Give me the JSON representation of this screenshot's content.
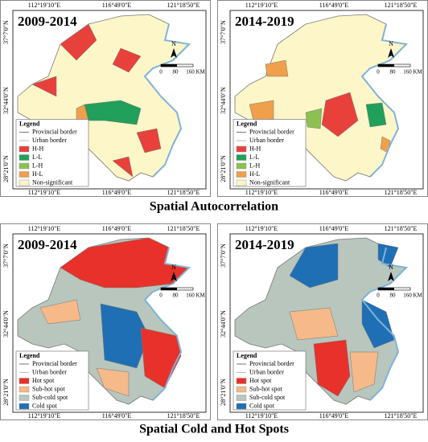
{
  "sections": [
    {
      "title": "Spatial Autocorrelation",
      "panels": [
        {
          "period": "2009-2014"
        },
        {
          "period": "2014-2019"
        }
      ],
      "legend": {
        "title": "Legend",
        "items": [
          {
            "label": "Provincial border",
            "color": "#555555"
          },
          {
            "label": "Urban border",
            "color": "#aaaaaa"
          },
          {
            "label": "H-H",
            "color": "#e8413c"
          },
          {
            "label": "L-L",
            "color": "#20a05a"
          },
          {
            "label": "L-H",
            "color": "#8cc152"
          },
          {
            "label": "H-L",
            "color": "#f0a04b"
          },
          {
            "label": "Non-significant",
            "color": "#fcf6c8"
          }
        ]
      }
    },
    {
      "title": "Spatial Cold and Hot Spots",
      "panels": [
        {
          "period": "2009-2014"
        },
        {
          "period": "2014-2019"
        }
      ],
      "legend": {
        "title": "Legend",
        "items": [
          {
            "label": "Provincial border",
            "color": "#555555"
          },
          {
            "label": "Urban border",
            "color": "#aaaaaa"
          },
          {
            "label": "Hot spot",
            "color": "#e8312a"
          },
          {
            "label": "Sub-hot spot",
            "color": "#f5b98a"
          },
          {
            "label": "Sub-cold spot",
            "color": "#b8c6bd"
          },
          {
            "label": "Cold spot",
            "color": "#1f6fb5"
          }
        ]
      }
    }
  ],
  "axes": {
    "longitudes": [
      "112°19'10\"E",
      "116°49'0\"E",
      "121°18'50\"E"
    ],
    "latitudes": [
      "37°7'0\"N",
      "32°44'0\"N",
      "28°21'0\"N"
    ]
  },
  "scale": {
    "north": "N",
    "ticks": [
      "0",
      "80",
      "160 KM"
    ]
  }
}
